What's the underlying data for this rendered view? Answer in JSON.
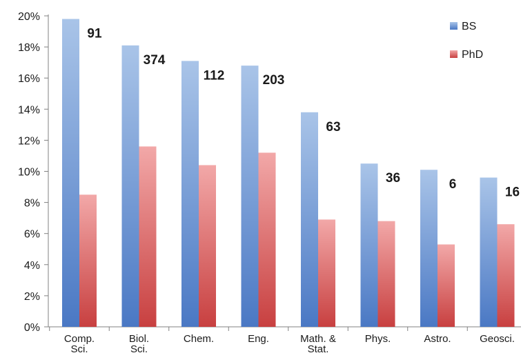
{
  "chart_data": {
    "type": "bar",
    "categories": [
      [
        "Comp.",
        "Sci."
      ],
      [
        "Biol.",
        "Sci."
      ],
      [
        "Chem."
      ],
      [
        "Eng."
      ],
      [
        "Math. &",
        "Stat."
      ],
      [
        "Phys."
      ],
      [
        "Astro."
      ],
      [
        "Geosci."
      ]
    ],
    "series": [
      {
        "name": "BS",
        "values": [
          19.8,
          18.1,
          17.1,
          16.8,
          13.8,
          10.5,
          10.1,
          9.6
        ],
        "color_top": "#a9c4e8",
        "color_bottom": "#4a78c4"
      },
      {
        "name": "PhD",
        "values": [
          8.5,
          11.6,
          10.4,
          11.2,
          6.9,
          6.8,
          5.3,
          6.6
        ],
        "color_top": "#f2a8a8",
        "color_bottom": "#c84040"
      }
    ],
    "data_labels": [
      "91",
      "374",
      "112",
      "203",
      "63",
      "36",
      "6",
      "16"
    ],
    "ylim": [
      0,
      20
    ],
    "yticks": [
      0,
      2,
      4,
      6,
      8,
      10,
      12,
      14,
      16,
      18,
      20
    ],
    "ytick_suffix": "%",
    "legend_position": "top-right",
    "grid": false
  }
}
